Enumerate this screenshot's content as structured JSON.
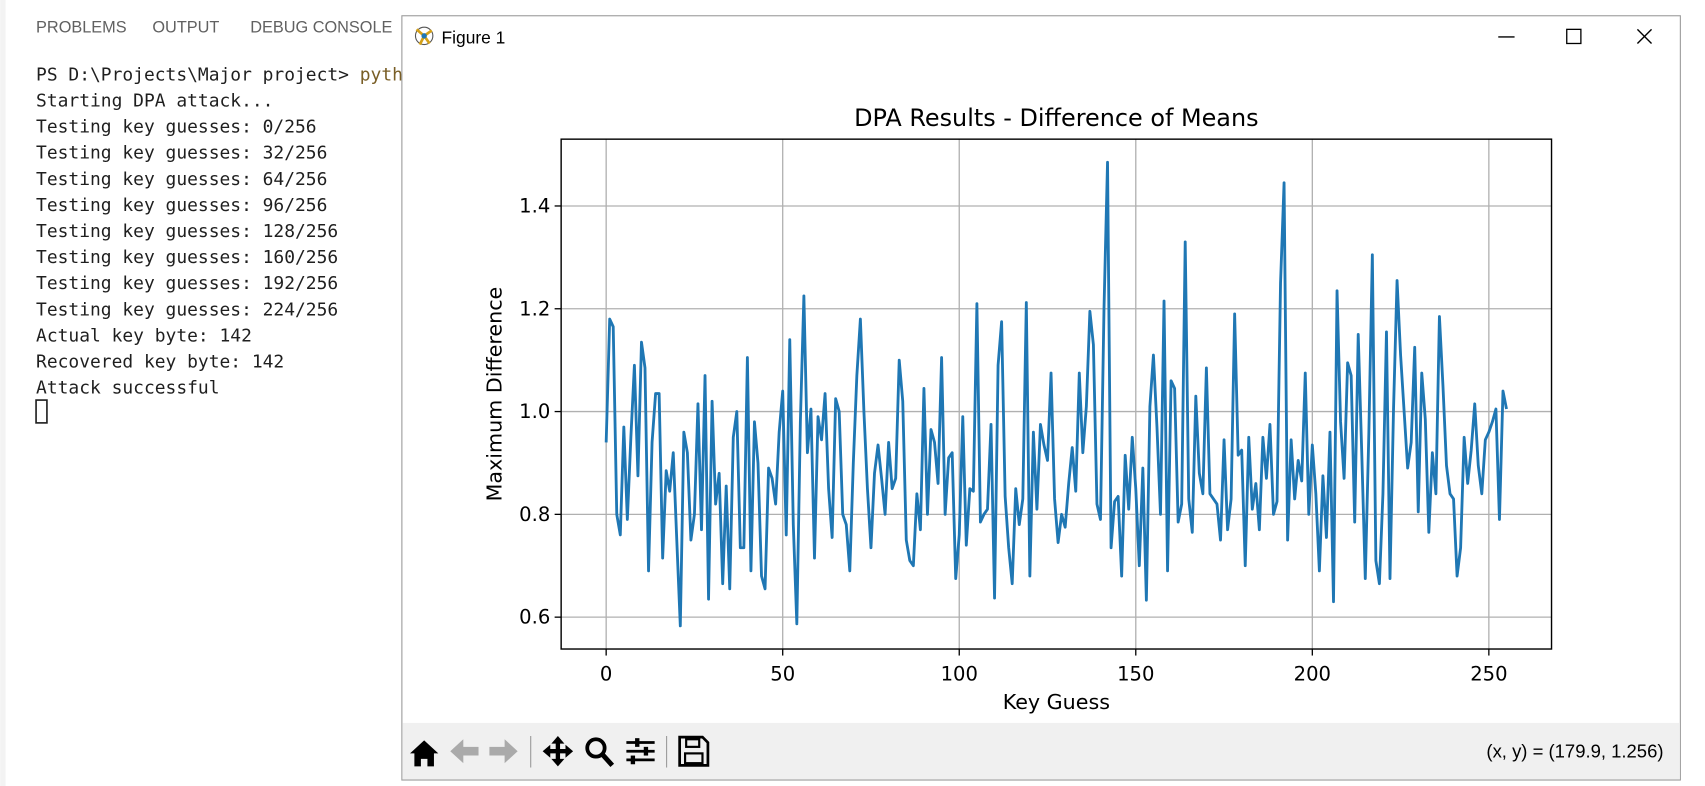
{
  "terminal": {
    "tabs": [
      "PROBLEMS",
      "OUTPUT",
      "DEBUG CONSOLE"
    ],
    "prompt": "PS D:\\Projects\\Major project> ",
    "command": "pyth",
    "lines": [
      "Starting DPA attack...",
      "Testing key guesses: 0/256",
      "Testing key guesses: 32/256",
      "Testing key guesses: 64/256",
      "Testing key guesses: 96/256",
      "Testing key guesses: 128/256",
      "Testing key guesses: 160/256",
      "Testing key guesses: 192/256",
      "Testing key guesses: 224/256",
      "Actual key byte: 142",
      "Recovered key byte: 142",
      "Attack successful"
    ]
  },
  "window": {
    "title": "Figure 1",
    "status": "(x, y) = (179.9, 1.256)"
  },
  "chart_data": {
    "type": "line",
    "title": "DPA Results - Difference of Means",
    "x_label": "Key Guess",
    "y_label": "Maximum Difference",
    "xlim": [
      -12.75,
      267.75
    ],
    "ylim": [
      0.538,
      1.53
    ],
    "xticks": [
      0,
      50,
      100,
      150,
      200,
      250
    ],
    "yticks": [
      0.6,
      0.8,
      {
        "value": 1,
        "label": "1.0"
      },
      1.2,
      1.4
    ],
    "grid": true,
    "x": [
      0,
      1,
      2,
      3,
      4,
      5,
      6,
      7,
      8,
      9,
      10,
      11,
      12,
      13,
      14,
      15,
      16,
      17,
      18,
      19,
      20,
      21,
      22,
      23,
      24,
      25,
      26,
      27,
      28,
      29,
      30,
      31,
      32,
      33,
      34,
      35,
      36,
      37,
      38,
      39,
      40,
      41,
      42,
      43,
      44,
      45,
      46,
      47,
      48,
      49,
      50,
      51,
      52,
      53,
      54,
      55,
      56,
      57,
      58,
      59,
      60,
      61,
      62,
      63,
      64,
      65,
      66,
      67,
      68,
      69,
      70,
      71,
      72,
      73,
      74,
      75,
      76,
      77,
      78,
      79,
      80,
      81,
      82,
      83,
      84,
      85,
      86,
      87,
      88,
      89,
      90,
      91,
      92,
      93,
      94,
      95,
      96,
      97,
      98,
      99,
      100,
      101,
      102,
      103,
      104,
      105,
      106,
      107,
      108,
      109,
      110,
      111,
      112,
      113,
      114,
      115,
      116,
      117,
      118,
      119,
      120,
      121,
      122,
      123,
      124,
      125,
      126,
      127,
      128,
      129,
      130,
      131,
      132,
      133,
      134,
      135,
      136,
      137,
      138,
      139,
      140,
      141,
      142,
      143,
      144,
      145,
      146,
      147,
      148,
      149,
      150,
      151,
      152,
      153,
      154,
      155,
      156,
      157,
      158,
      159,
      160,
      161,
      162,
      163,
      164,
      165,
      166,
      167,
      168,
      169,
      170,
      171,
      172,
      173,
      174,
      175,
      176,
      177,
      178,
      179,
      180,
      181,
      182,
      183,
      184,
      185,
      186,
      187,
      188,
      189,
      190,
      191,
      192,
      193,
      194,
      195,
      196,
      197,
      198,
      199,
      200,
      201,
      202,
      203,
      204,
      205,
      206,
      207,
      208,
      209,
      210,
      211,
      212,
      213,
      214,
      215,
      216,
      217,
      218,
      219,
      220,
      221,
      222,
      223,
      224,
      225,
      226,
      227,
      228,
      229,
      230,
      231,
      232,
      233,
      234,
      235,
      236,
      237,
      238,
      239,
      240,
      241,
      242,
      243,
      244,
      245,
      246,
      247,
      248,
      249,
      250,
      251,
      252,
      253,
      254,
      255
    ],
    "series": [
      {
        "color": "#1f77b4",
        "values": [
          0.94,
          1.18,
          1.165,
          0.8,
          0.76,
          0.97,
          0.79,
          0.95,
          1.09,
          0.875,
          1.135,
          1.085,
          0.69,
          0.94,
          1.035,
          1.035,
          0.715,
          0.885,
          0.845,
          0.92,
          0.75,
          0.583,
          0.96,
          0.92,
          0.75,
          0.8,
          1.015,
          0.77,
          1.07,
          0.635,
          1.02,
          0.82,
          0.88,
          0.665,
          0.855,
          0.655,
          0.95,
          1.0,
          0.735,
          0.735,
          1.105,
          0.69,
          0.98,
          0.9,
          0.68,
          0.655,
          0.89,
          0.87,
          0.82,
          0.96,
          1.04,
          0.76,
          1.14,
          0.78,
          0.587,
          0.98,
          1.225,
          0.92,
          1.005,
          0.715,
          0.99,
          0.945,
          1.035,
          0.85,
          0.755,
          1.025,
          1.0,
          0.8,
          0.78,
          0.69,
          0.9,
          1.07,
          1.18,
          1.0,
          0.85,
          0.735,
          0.88,
          0.935,
          0.87,
          0.8,
          0.94,
          0.85,
          0.87,
          1.1,
          1.02,
          0.75,
          0.71,
          0.7,
          0.84,
          0.77,
          1.045,
          0.8,
          0.965,
          0.94,
          0.86,
          1.105,
          0.8,
          0.91,
          0.92,
          0.675,
          0.76,
          0.99,
          0.74,
          0.85,
          0.845,
          1.21,
          0.785,
          0.8,
          0.81,
          0.975,
          0.637,
          1.09,
          1.175,
          0.835,
          0.735,
          0.665,
          0.85,
          0.78,
          0.83,
          1.212,
          0.68,
          0.96,
          0.81,
          0.975,
          0.935,
          0.905,
          1.075,
          0.83,
          0.745,
          0.8,
          0.775,
          0.86,
          0.93,
          0.845,
          1.075,
          0.92,
          1.01,
          1.195,
          1.13,
          0.82,
          0.79,
          1.2,
          1.485,
          0.735,
          0.825,
          0.835,
          0.68,
          0.915,
          0.81,
          0.95,
          0.85,
          0.7,
          0.89,
          0.633,
          1.01,
          1.11,
          0.97,
          0.8,
          1.215,
          0.69,
          1.06,
          1.045,
          0.785,
          0.82,
          1.33,
          0.83,
          0.765,
          1.03,
          0.88,
          0.84,
          1.085,
          0.84,
          0.83,
          0.82,
          0.75,
          0.945,
          0.77,
          0.83,
          1.19,
          0.915,
          0.925,
          0.7,
          0.95,
          0.81,
          0.86,
          0.77,
          0.95,
          0.87,
          0.975,
          0.8,
          0.825,
          1.25,
          1.445,
          0.75,
          0.945,
          0.83,
          0.905,
          0.865,
          1.075,
          0.8,
          0.935,
          0.84,
          0.69,
          0.875,
          0.755,
          0.96,
          0.63,
          1.235,
          0.98,
          0.87,
          1.095,
          1.07,
          0.785,
          1.15,
          0.92,
          0.675,
          0.955,
          1.305,
          0.71,
          0.665,
          0.84,
          1.155,
          0.675,
          1.005,
          1.255,
          1.11,
          1.0,
          0.89,
          0.94,
          1.125,
          0.805,
          1.075,
          0.985,
          0.765,
          0.92,
          0.84,
          1.185,
          1.05,
          0.895,
          0.84,
          0.83,
          0.68,
          0.735,
          0.95,
          0.86,
          0.925,
          1.015,
          0.895,
          0.84,
          0.945,
          0.96,
          0.98,
          1.005,
          0.79,
          1.04,
          1.005
        ]
      }
    ]
  }
}
